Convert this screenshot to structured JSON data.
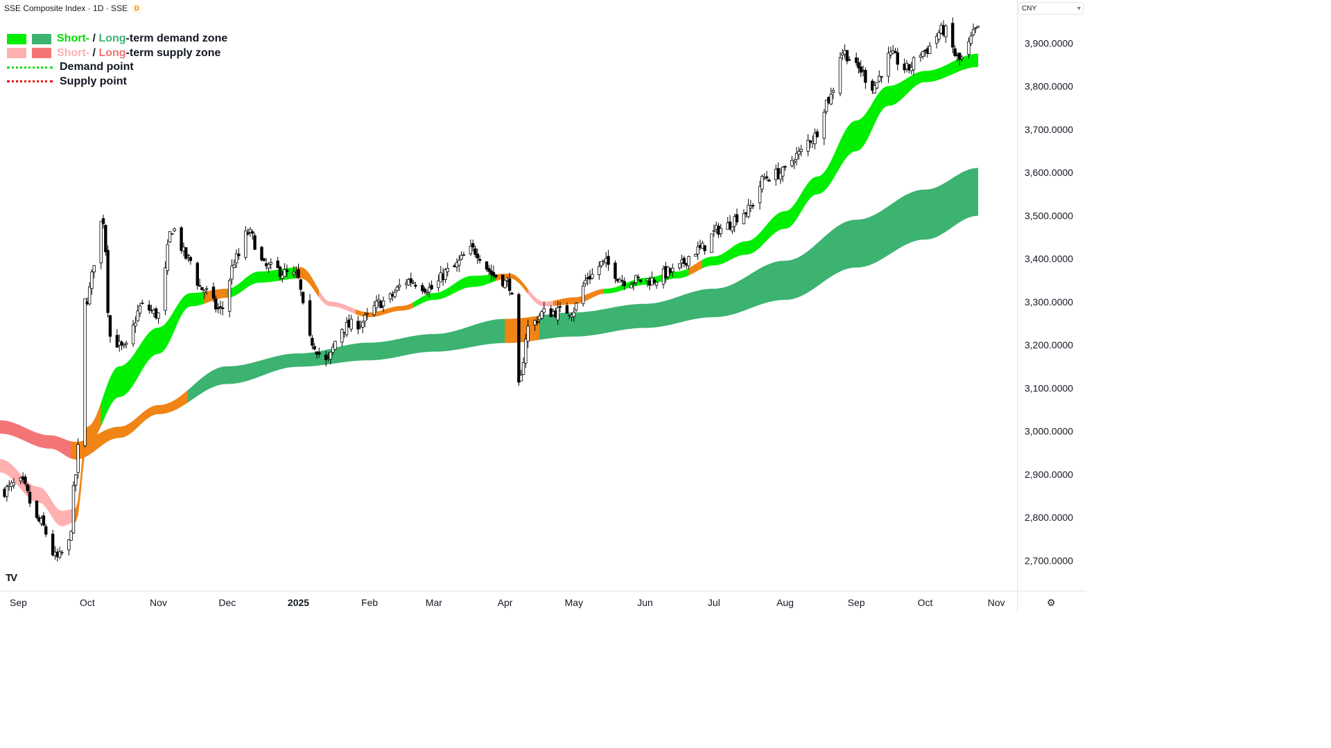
{
  "header": {
    "title": "SSE Composite Index · 1D · SSE",
    "badge": "D"
  },
  "currency": {
    "label": "CNY",
    "chevron": "chevron-down-icon"
  },
  "legend": {
    "demand_zone": {
      "short": "Short-",
      "sep": " / ",
      "long": "Long",
      "rest": "-term demand zone"
    },
    "supply_zone": {
      "short": "Short-",
      "sep": " / ",
      "long": "Long",
      "rest": "-term supply zone"
    },
    "demand_point": "Demand point",
    "supply_point": "Supply point"
  },
  "logo": "TV",
  "colors": {
    "short_demand": "#00ee00",
    "long_demand": "#3cb371",
    "short_supply": "#ffb0b0",
    "long_supply": "#f47575",
    "transition": "#f08414",
    "demand_point": "#00dd00",
    "supply_point": "#ee0000",
    "up_candle": "#ffffff",
    "down_candle": "#000000"
  },
  "chart_data": {
    "type": "candlestick",
    "title": "SSE Composite Index",
    "y_ticks": [
      "3,900.0000",
      "3,800.0000",
      "3,700.0000",
      "3,600.0000",
      "3,500.0000",
      "3,400.0000",
      "3,300.0000",
      "3,200.0000",
      "3,100.0000",
      "3,000.0000",
      "2,900.0000",
      "2,800.0000",
      "2,700.0000"
    ],
    "ylim": [
      2630,
      4000
    ],
    "x_ticks": [
      "Sep",
      "Oct",
      "Nov",
      "Dec",
      "2025",
      "Feb",
      "Mar",
      "Apr",
      "May",
      "Jun",
      "Jul",
      "Aug",
      "Sep",
      "Oct",
      "Nov"
    ],
    "x_tick_dates": [
      "2024-09-01",
      "2024-10-01",
      "2024-11-01",
      "2024-12-01",
      "2025-01-01",
      "2025-02-01",
      "2025-03-01",
      "2025-04-01",
      "2025-05-01",
      "2025-06-01",
      "2025-07-01",
      "2025-08-01",
      "2025-09-01",
      "2025-10-01",
      "2025-11-01"
    ],
    "xlim": [
      "2024-08-24",
      "2025-11-10"
    ],
    "price_keyframes": [
      [
        "2024-08-24",
        2860
      ],
      [
        "2024-09-02",
        2880
      ],
      [
        "2024-09-10",
        2790
      ],
      [
        "2024-09-18",
        2705
      ],
      [
        "2024-09-23",
        2740
      ],
      [
        "2024-09-26",
        2900
      ],
      [
        "2024-09-30",
        3300
      ],
      [
        "2024-10-08",
        3490
      ],
      [
        "2024-10-11",
        3220
      ],
      [
        "2024-10-17",
        3190
      ],
      [
        "2024-10-25",
        3290
      ],
      [
        "2024-11-01",
        3270
      ],
      [
        "2024-11-07",
        3470
      ],
      [
        "2024-11-14",
        3400
      ],
      [
        "2024-11-20",
        3330
      ],
      [
        "2024-11-28",
        3280
      ],
      [
        "2024-12-05",
        3400
      ],
      [
        "2024-12-10",
        3460
      ],
      [
        "2024-12-18",
        3380
      ],
      [
        "2024-12-31",
        3360
      ],
      [
        "2025-01-06",
        3210
      ],
      [
        "2025-01-13",
        3160
      ],
      [
        "2025-01-20",
        3240
      ],
      [
        "2025-01-27",
        3250
      ],
      [
        "2025-02-07",
        3300
      ],
      [
        "2025-02-18",
        3350
      ],
      [
        "2025-02-28",
        3330
      ],
      [
        "2025-03-07",
        3370
      ],
      [
        "2025-03-18",
        3420
      ],
      [
        "2025-03-28",
        3360
      ],
      [
        "2025-04-03",
        3340
      ],
      [
        "2025-04-07",
        3100
      ],
      [
        "2025-04-11",
        3240
      ],
      [
        "2025-04-18",
        3275
      ],
      [
        "2025-04-30",
        3280
      ],
      [
        "2025-05-08",
        3360
      ],
      [
        "2025-05-14",
        3390
      ],
      [
        "2025-05-23",
        3350
      ],
      [
        "2025-06-03",
        3350
      ],
      [
        "2025-06-13",
        3370
      ],
      [
        "2025-06-24",
        3420
      ],
      [
        "2025-07-04",
        3470
      ],
      [
        "2025-07-15",
        3510
      ],
      [
        "2025-07-24",
        3590
      ],
      [
        "2025-07-31",
        3600
      ],
      [
        "2025-08-06",
        3640
      ],
      [
        "2025-08-13",
        3680
      ],
      [
        "2025-08-20",
        3770
      ],
      [
        "2025-08-26",
        3880
      ],
      [
        "2025-09-02",
        3840
      ],
      [
        "2025-09-08",
        3800
      ],
      [
        "2025-09-16",
        3870
      ],
      [
        "2025-09-23",
        3840
      ],
      [
        "2025-09-30",
        3880
      ],
      [
        "2025-10-09",
        3930
      ],
      [
        "2025-10-16",
        3860
      ],
      [
        "2025-10-24",
        3930
      ]
    ],
    "zones": {
      "short_upper": [
        [
          "2024-08-24",
          2935
        ],
        [
          "2024-09-10",
          2870
        ],
        [
          "2024-09-20",
          2815
        ],
        [
          "2024-09-26",
          2820
        ],
        [
          "2024-10-01",
          3010
        ],
        [
          "2024-10-15",
          3150
        ],
        [
          "2024-11-01",
          3240
        ],
        [
          "2024-11-15",
          3320
        ],
        [
          "2024-12-01",
          3330
        ],
        [
          "2024-12-15",
          3370
        ],
        [
          "2025-01-02",
          3380
        ],
        [
          "2025-01-15",
          3300
        ],
        [
          "2025-02-01",
          3275
        ],
        [
          "2025-02-15",
          3290
        ],
        [
          "2025-03-01",
          3320
        ],
        [
          "2025-03-18",
          3360
        ],
        [
          "2025-04-03",
          3365
        ],
        [
          "2025-04-18",
          3300
        ],
        [
          "2025-05-01",
          3310
        ],
        [
          "2025-05-15",
          3330
        ],
        [
          "2025-06-01",
          3355
        ],
        [
          "2025-06-15",
          3370
        ],
        [
          "2025-07-01",
          3405
        ],
        [
          "2025-07-15",
          3440
        ],
        [
          "2025-08-01",
          3510
        ],
        [
          "2025-08-15",
          3590
        ],
        [
          "2025-09-01",
          3720
        ],
        [
          "2025-09-15",
          3800
        ],
        [
          "2025-10-01",
          3835
        ],
        [
          "2025-10-24",
          3875
        ]
      ],
      "short_lower": [
        [
          "2024-08-24",
          2905
        ],
        [
          "2024-09-10",
          2835
        ],
        [
          "2024-09-20",
          2780
        ],
        [
          "2024-09-26",
          2790
        ],
        [
          "2024-10-01",
          2970
        ],
        [
          "2024-10-15",
          3080
        ],
        [
          "2024-11-01",
          3180
        ],
        [
          "2024-11-15",
          3290
        ],
        [
          "2024-12-01",
          3310
        ],
        [
          "2024-12-15",
          3345
        ],
        [
          "2025-01-02",
          3355
        ],
        [
          "2025-01-15",
          3290
        ],
        [
          "2025-02-01",
          3265
        ],
        [
          "2025-02-15",
          3280
        ],
        [
          "2025-03-01",
          3305
        ],
        [
          "2025-03-18",
          3335
        ],
        [
          "2025-04-03",
          3355
        ],
        [
          "2025-04-18",
          3290
        ],
        [
          "2025-05-01",
          3295
        ],
        [
          "2025-05-15",
          3320
        ],
        [
          "2025-06-01",
          3340
        ],
        [
          "2025-06-15",
          3355
        ],
        [
          "2025-07-01",
          3385
        ],
        [
          "2025-07-15",
          3410
        ],
        [
          "2025-08-01",
          3470
        ],
        [
          "2025-08-15",
          3550
        ],
        [
          "2025-09-01",
          3650
        ],
        [
          "2025-09-15",
          3755
        ],
        [
          "2025-10-01",
          3810
        ],
        [
          "2025-10-24",
          3845
        ]
      ],
      "long_upper": [
        [
          "2024-08-24",
          3025
        ],
        [
          "2024-09-15",
          2990
        ],
        [
          "2024-09-26",
          2975
        ],
        [
          "2024-10-15",
          3010
        ],
        [
          "2024-11-01",
          3060
        ],
        [
          "2024-12-01",
          3150
        ],
        [
          "2025-01-01",
          3180
        ],
        [
          "2025-02-01",
          3205
        ],
        [
          "2025-03-01",
          3225
        ],
        [
          "2025-04-01",
          3260
        ],
        [
          "2025-05-01",
          3275
        ],
        [
          "2025-06-01",
          3295
        ],
        [
          "2025-07-01",
          3330
        ],
        [
          "2025-08-01",
          3395
        ],
        [
          "2025-09-01",
          3490
        ],
        [
          "2025-10-01",
          3560
        ],
        [
          "2025-10-24",
          3610
        ]
      ],
      "long_lower": [
        [
          "2024-08-24",
          2995
        ],
        [
          "2024-09-15",
          2960
        ],
        [
          "2024-09-26",
          2935
        ],
        [
          "2024-10-15",
          2985
        ],
        [
          "2024-11-01",
          3040
        ],
        [
          "2024-12-01",
          3110
        ],
        [
          "2025-01-01",
          3150
        ],
        [
          "2025-02-01",
          3165
        ],
        [
          "2025-03-01",
          3185
        ],
        [
          "2025-04-01",
          3205
        ],
        [
          "2025-05-01",
          3220
        ],
        [
          "2025-06-01",
          3240
        ],
        [
          "2025-07-01",
          3265
        ],
        [
          "2025-08-01",
          3305
        ],
        [
          "2025-09-01",
          3380
        ],
        [
          "2025-10-01",
          3445
        ],
        [
          "2025-10-24",
          3500
        ]
      ],
      "short_segments": [
        [
          "2024-08-24",
          "2024-09-25",
          "supply"
        ],
        [
          "2024-09-25",
          "2024-10-07",
          "transition"
        ],
        [
          "2024-10-07",
          "2024-11-21",
          "demand"
        ],
        [
          "2024-11-21",
          "2024-12-01",
          "transition"
        ],
        [
          "2024-12-01",
          "2024-12-31",
          "demand"
        ],
        [
          "2024-12-31",
          "2025-01-10",
          "transition"
        ],
        [
          "2025-01-10",
          "2025-01-26",
          "supply"
        ],
        [
          "2025-01-26",
          "2025-02-20",
          "transition"
        ],
        [
          "2025-02-20",
          "2025-03-28",
          "demand"
        ],
        [
          "2025-03-28",
          "2025-04-11",
          "transition"
        ],
        [
          "2025-04-11",
          "2025-04-22",
          "supply"
        ],
        [
          "2025-04-22",
          "2025-05-14",
          "transition"
        ],
        [
          "2025-05-14",
          "2025-06-20",
          "demand"
        ],
        [
          "2025-06-20",
          "2025-06-26",
          "transition"
        ],
        [
          "2025-06-26",
          "2025-10-24",
          "demand"
        ]
      ],
      "long_segments": [
        [
          "2024-08-24",
          "2024-09-24",
          "supply"
        ],
        [
          "2024-09-24",
          "2024-11-14",
          "transition"
        ],
        [
          "2024-11-14",
          "2025-04-01",
          "demand"
        ],
        [
          "2025-04-01",
          "2025-04-16",
          "transition"
        ],
        [
          "2025-04-16",
          "2025-10-24",
          "demand"
        ]
      ]
    }
  }
}
